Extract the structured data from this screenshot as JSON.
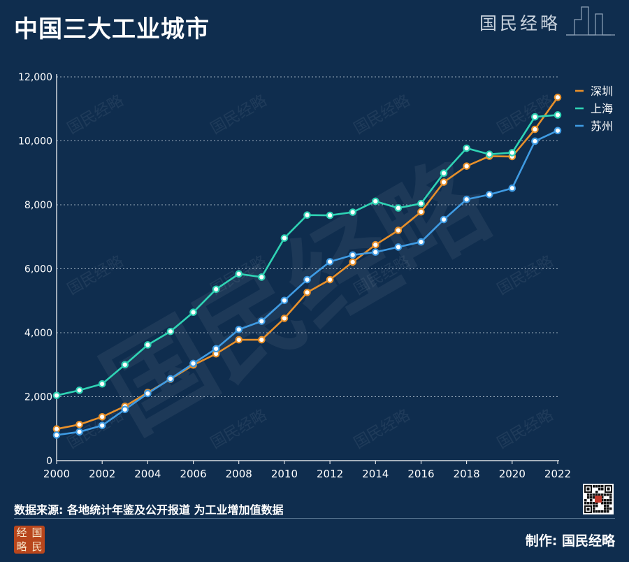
{
  "header": {
    "title": "中国三大工业城市",
    "brand": "国民经略",
    "watermark": "国民经略"
  },
  "footer": {
    "source": "数据来源: 各地统计年鉴及公开报道  为工业增加值数据",
    "maker": "制作: 国民经略",
    "seal_chars": [
      "经",
      "国",
      "略",
      "民"
    ]
  },
  "colors": {
    "background": "#0f2d4e",
    "grid": "#c8d4e0",
    "深圳": "#e8902a",
    "上海": "#2fd3b4",
    "苏州": "#3f9be3"
  },
  "chart_data": {
    "type": "line",
    "title": "中国三大工业城市",
    "xlabel": "",
    "ylabel": "",
    "xlim": [
      2000,
      2022
    ],
    "ylim": [
      0,
      12000
    ],
    "x_ticks": [
      2000,
      2002,
      2004,
      2006,
      2008,
      2010,
      2012,
      2014,
      2016,
      2018,
      2020,
      2022
    ],
    "y_ticks": [
      0,
      2000,
      4000,
      6000,
      8000,
      10000,
      12000
    ],
    "y_tick_labels": [
      "0",
      "2,000",
      "4,000",
      "6,000",
      "8,000",
      "10,000",
      "12,000"
    ],
    "grid": "horizontal dotted",
    "legend": "top-right",
    "x": [
      2000,
      2001,
      2002,
      2003,
      2004,
      2005,
      2006,
      2007,
      2008,
      2009,
      2010,
      2011,
      2012,
      2013,
      2014,
      2015,
      2016,
      2017,
      2018,
      2019,
      2020,
      2021,
      2022
    ],
    "series": [
      {
        "name": "深圳",
        "values": [
          990,
          1130,
          1370,
          1700,
          2130,
          2550,
          2990,
          3340,
          3780,
          3780,
          4450,
          5260,
          5660,
          6210,
          6750,
          7200,
          7780,
          8710,
          9210,
          9520,
          9510,
          10360,
          11360
        ]
      },
      {
        "name": "上海",
        "values": [
          2040,
          2200,
          2400,
          3000,
          3620,
          4040,
          4640,
          5360,
          5840,
          5740,
          6960,
          7680,
          7670,
          7770,
          8110,
          7900,
          8040,
          8990,
          9770,
          9580,
          9630,
          10750,
          10810
        ]
      },
      {
        "name": "苏州",
        "values": [
          800,
          900,
          1100,
          1600,
          2100,
          2560,
          3040,
          3500,
          4100,
          4360,
          5010,
          5660,
          6220,
          6430,
          6520,
          6680,
          6840,
          7540,
          8170,
          8320,
          8520,
          9990,
          10320
        ]
      }
    ]
  }
}
